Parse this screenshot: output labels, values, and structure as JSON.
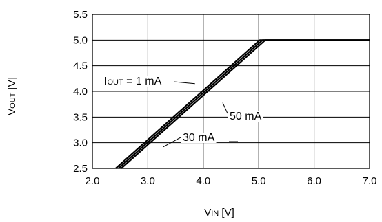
{
  "chart_data": {
    "type": "line",
    "xlabel": {
      "main": "V",
      "sub": "IN",
      "unit": " [V]"
    },
    "ylabel": {
      "main": "V",
      "sub": "OUT",
      "unit": " [V]"
    },
    "xlim": [
      2.0,
      7.0
    ],
    "ylim": [
      2.5,
      5.5
    ],
    "x_ticks": [
      "2.0",
      "3.0",
      "4.0",
      "5.0",
      "6.0",
      "7.0"
    ],
    "y_ticks": [
      "2.5",
      "3.0",
      "3.5",
      "4.0",
      "4.5",
      "5.0",
      "5.5"
    ],
    "grid": true,
    "series": [
      {
        "name": "I_OUT = 1 mA",
        "x": [
          2.42,
          5.02,
          7.0
        ],
        "y": [
          2.5,
          5.0,
          5.0
        ]
      },
      {
        "name": "30 mA",
        "x": [
          2.47,
          5.07,
          7.0
        ],
        "y": [
          2.5,
          5.0,
          5.0
        ]
      },
      {
        "name": "50 mA",
        "x": [
          2.52,
          5.12,
          7.0
        ],
        "y": [
          2.5,
          5.0,
          5.0
        ]
      }
    ],
    "annotations": [
      {
        "main": "I",
        "sub": "OUT",
        "rest": " = 1 mA",
        "target_x": 3.85,
        "target_y": 4.15
      },
      {
        "main": "50 mA",
        "sub": "",
        "rest": "",
        "target_x": 4.35,
        "target_y": 3.78
      },
      {
        "main": "30 mA",
        "sub": "",
        "rest": "",
        "target_x": 3.28,
        "target_y": 2.92
      }
    ]
  }
}
